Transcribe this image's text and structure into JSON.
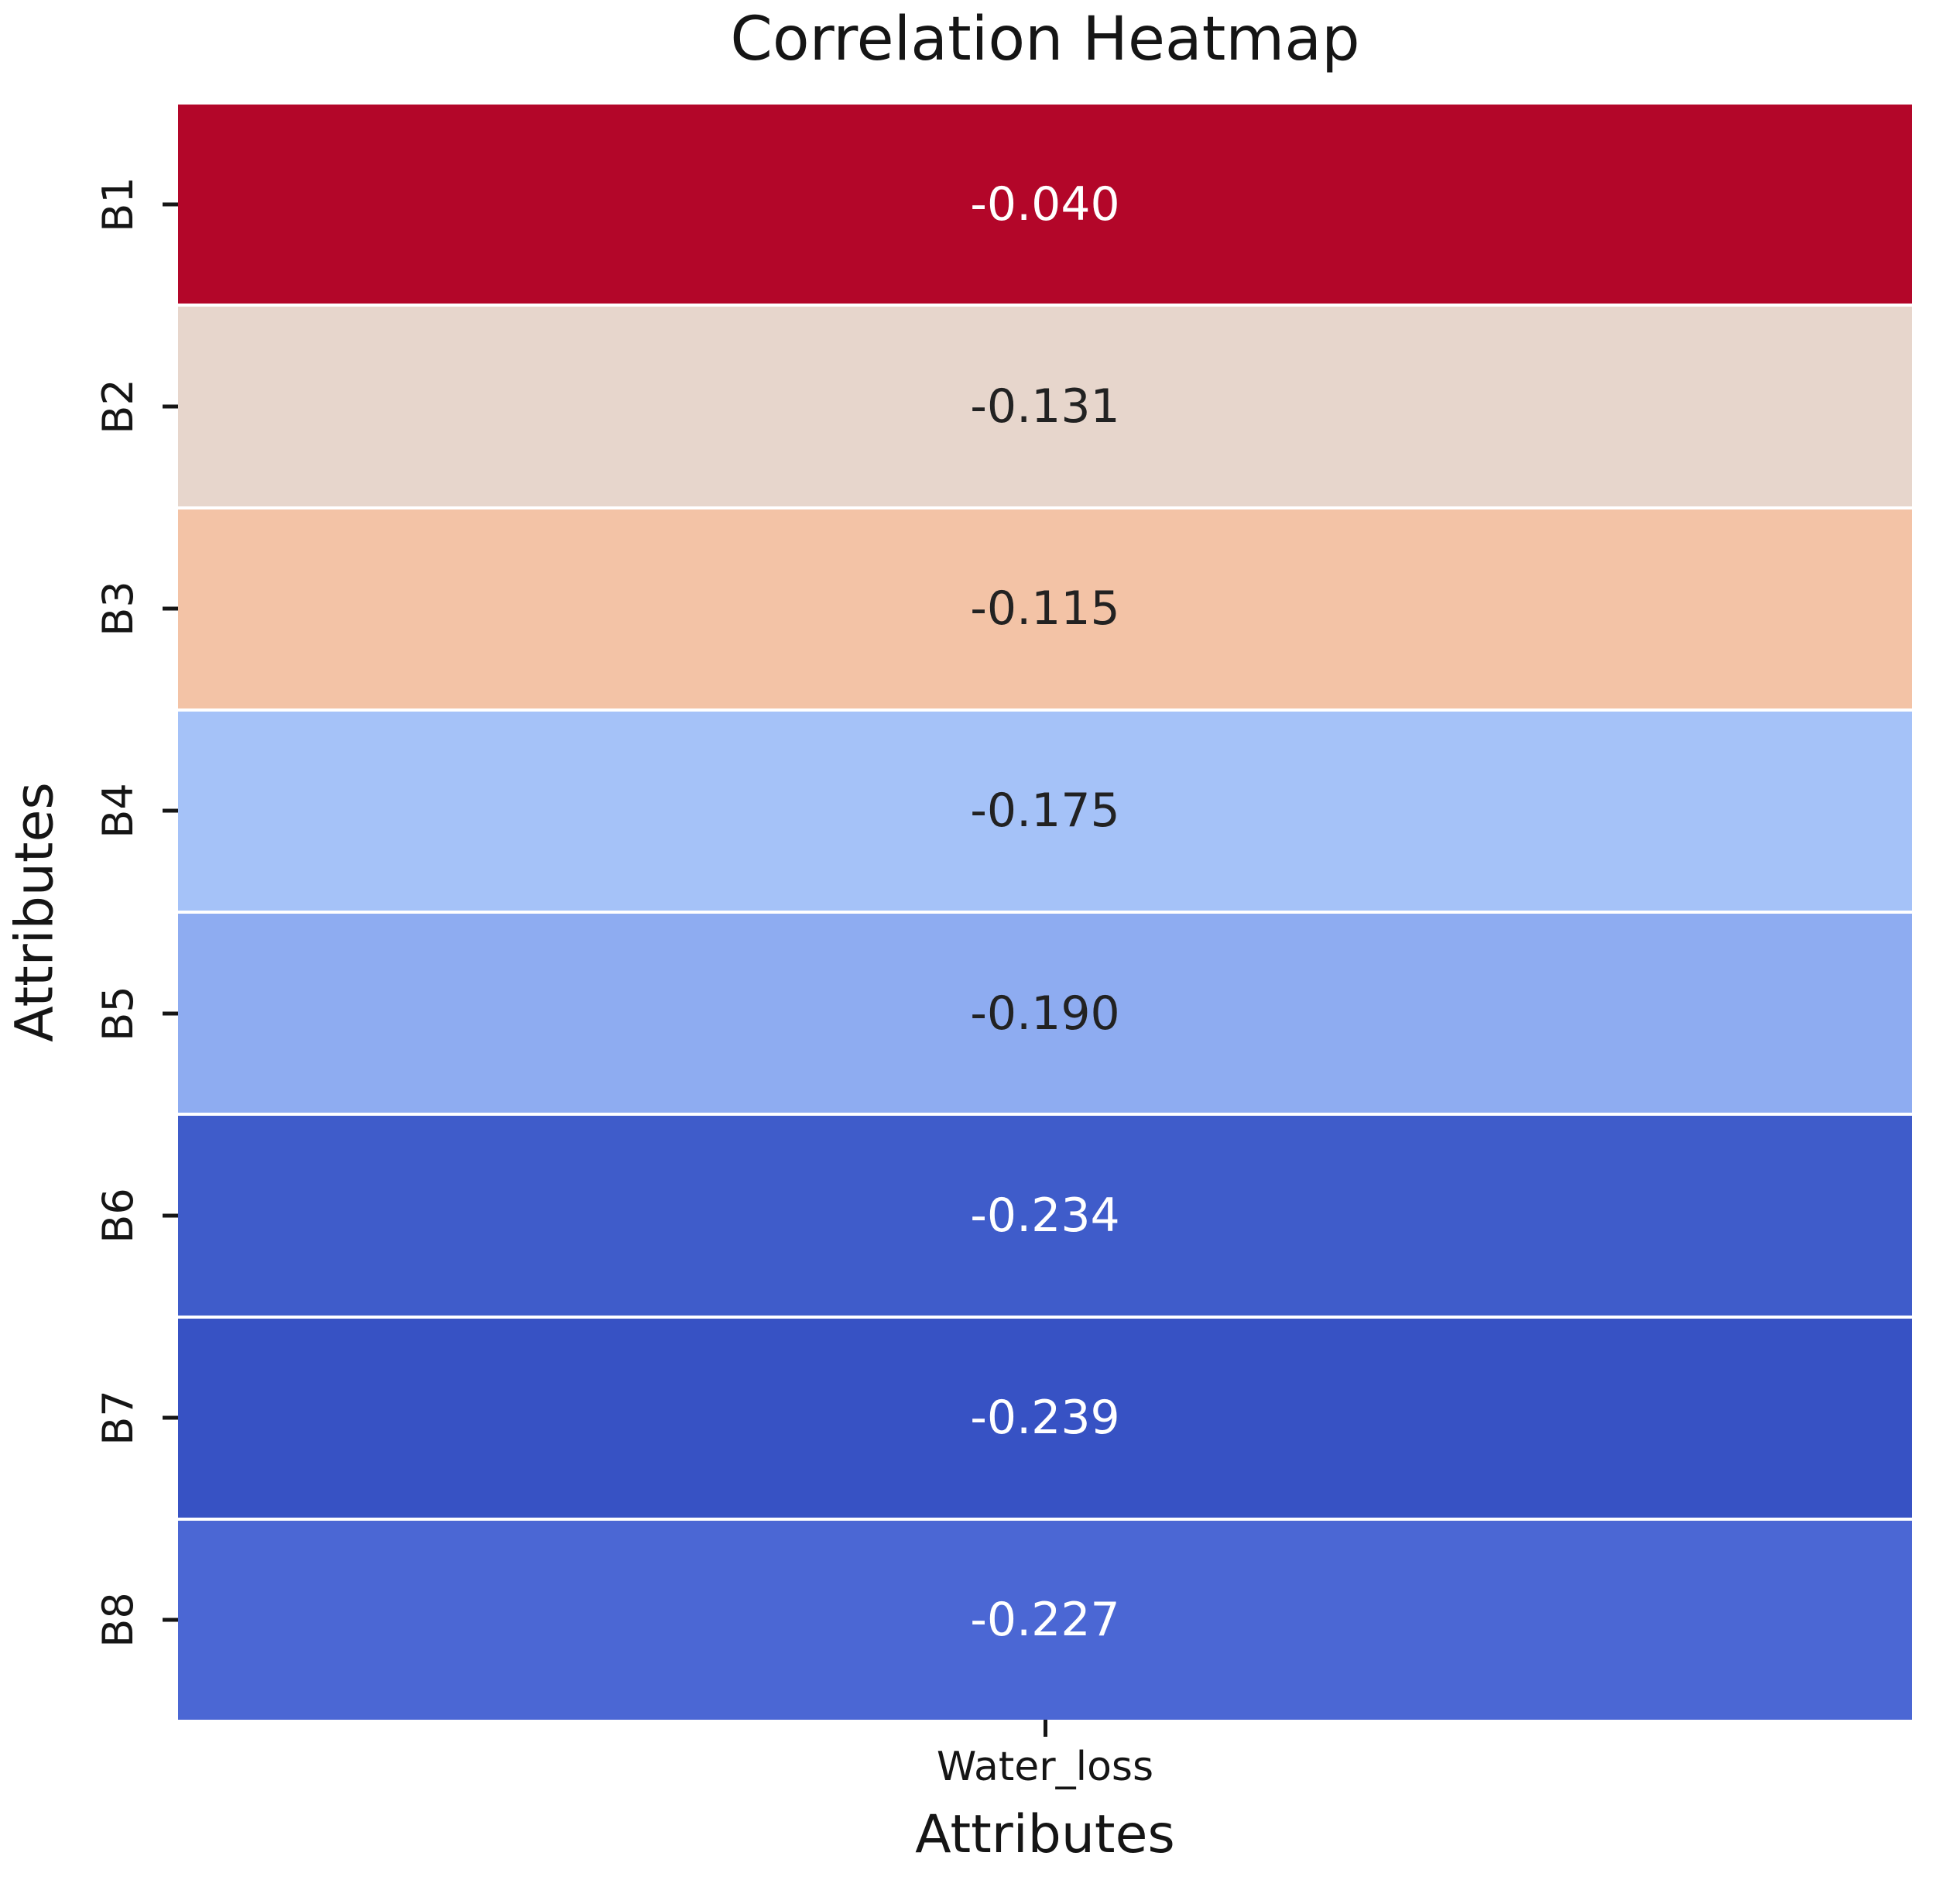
{
  "chart_data": {
    "type": "heatmap",
    "title": "Correlation Heatmap",
    "xlabel": "Attributes",
    "ylabel": "Attributes",
    "columns": [
      "Water_loss"
    ],
    "rows": [
      "B1",
      "B2",
      "B3",
      "B4",
      "B5",
      "B6",
      "B7",
      "B8"
    ],
    "values": [
      [
        -0.04
      ],
      [
        -0.131
      ],
      [
        -0.115
      ],
      [
        -0.175
      ],
      [
        -0.19
      ],
      [
        -0.234
      ],
      [
        -0.239
      ],
      [
        -0.227
      ]
    ],
    "value_labels": [
      "-0.040",
      "-0.131",
      "-0.115",
      "-0.175",
      "-0.190",
      "-0.234",
      "-0.239",
      "-0.227"
    ],
    "cell_colors": [
      "#b30629",
      "#e7d6cc",
      "#f3c3a6",
      "#a5c2f8",
      "#8eacf1",
      "#3f5cca",
      "#3752c4",
      "#4b67d4"
    ],
    "text_colors": [
      "#ffffff",
      "#222222",
      "#222222",
      "#222222",
      "#222222",
      "#ffffff",
      "#ffffff",
      "#ffffff"
    ],
    "colormap": "coolwarm",
    "grid_line_color": "#ffffff",
    "legend_position": "none",
    "annotations_on": true
  }
}
